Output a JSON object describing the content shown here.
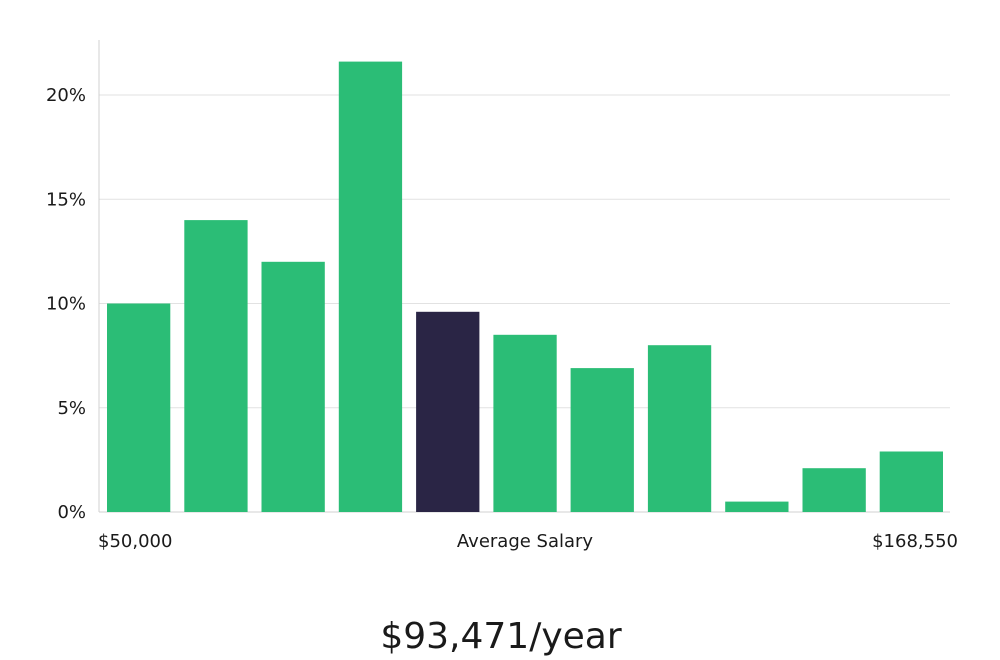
{
  "chart_data": {
    "type": "bar",
    "values": [
      10.0,
      14.0,
      12.0,
      21.6,
      9.6,
      8.5,
      6.9,
      8.0,
      0.5,
      2.1,
      2.9
    ],
    "highlight_index": 4,
    "ylim": [
      0,
      22.5
    ],
    "yticks": [
      0,
      5,
      10,
      15,
      20
    ],
    "ytick_labels": [
      "0%",
      "5%",
      "10%",
      "15%",
      "20%"
    ],
    "x_left_label": "$50,000",
    "x_center_label": "Average Salary",
    "x_right_label": "$168,550",
    "grid": true,
    "colors": {
      "bar": "#2bbd76",
      "highlight": "#2a2545",
      "grid": "#e2e2e2",
      "axis": "#d0d0d0"
    }
  },
  "salary": "$93,471/year"
}
